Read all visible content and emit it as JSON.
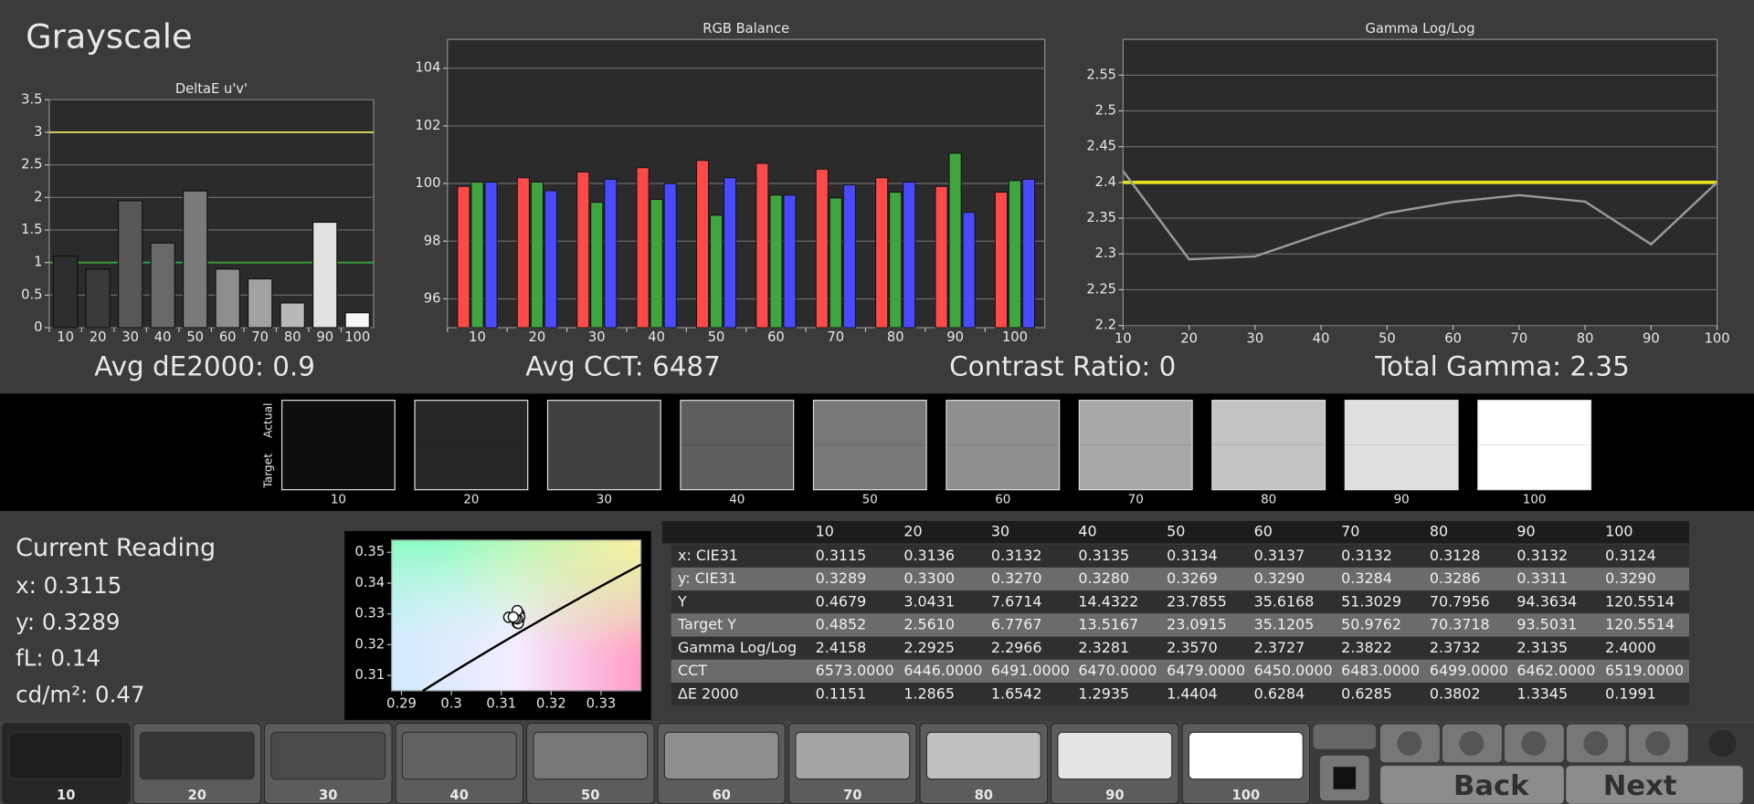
{
  "title": "Grayscale",
  "chart_data": [
    {
      "type": "bar",
      "title": "DeltaE u'v'",
      "categories": [
        "10",
        "20",
        "30",
        "40",
        "50",
        "60",
        "70",
        "80",
        "90",
        "100"
      ],
      "values": [
        1.1,
        0.9,
        1.95,
        1.3,
        2.1,
        0.9,
        0.75,
        0.38,
        1.62,
        0.23
      ],
      "colors": [
        "#2e2e2e",
        "#3a3a3a",
        "#575757",
        "#686868",
        "#7a7a7a",
        "#8e8e8e",
        "#a2a2a2",
        "#b8b8b8",
        "#e2e2e2",
        "#f6f6f6"
      ],
      "ylim": [
        0,
        3.5
      ],
      "yticks": [
        0,
        0.5,
        1,
        1.5,
        2,
        2.5,
        3,
        3.5
      ],
      "grid": true,
      "reference_lines": [
        {
          "value": 3,
          "color": "#d8d860"
        },
        {
          "value": 1,
          "color": "#3aa03a"
        }
      ]
    },
    {
      "type": "bar",
      "title": "RGB Balance",
      "categories": [
        "10",
        "20",
        "30",
        "40",
        "50",
        "60",
        "70",
        "80",
        "90",
        "100"
      ],
      "series": [
        {
          "color": "#ff4a4a",
          "values": [
            99.9,
            100.2,
            100.4,
            100.55,
            100.8,
            100.7,
            100.5,
            100.2,
            99.9,
            99.7
          ]
        },
        {
          "color": "#3fa63f",
          "values": [
            100.05,
            100.05,
            99.35,
            99.45,
            98.9,
            99.6,
            99.5,
            99.7,
            101.05,
            100.1
          ]
        },
        {
          "color": "#4a4aff",
          "values": [
            100.05,
            99.75,
            100.15,
            100.0,
            100.2,
            99.6,
            99.95,
            100.05,
            99.0,
            100.15
          ]
        }
      ],
      "ylim": [
        95,
        105
      ],
      "yticks": [
        96,
        98,
        100,
        102,
        104
      ],
      "grid": true
    },
    {
      "type": "line",
      "title": "Gamma Log/Log",
      "x": [
        10,
        20,
        30,
        40,
        50,
        60,
        70,
        80,
        90,
        100
      ],
      "series": [
        {
          "color": "#9a9a9a",
          "values": [
            2.4158,
            2.2925,
            2.2966,
            2.3281,
            2.357,
            2.3727,
            2.3822,
            2.3732,
            2.3135,
            2.4
          ]
        }
      ],
      "xlim": [
        10,
        100
      ],
      "xticks": [
        10,
        20,
        30,
        40,
        50,
        60,
        70,
        80,
        90,
        100
      ],
      "ylim": [
        2.2,
        2.6
      ],
      "yticks": [
        2.2,
        2.25,
        2.3,
        2.35,
        2.4,
        2.45,
        2.5,
        2.55
      ],
      "grid": true,
      "reference_lines": [
        {
          "value": 2.4,
          "color": "#e8e020"
        }
      ]
    },
    {
      "type": "scatter",
      "x": [
        0.3115,
        0.3136,
        0.3132,
        0.3135,
        0.3134,
        0.3137,
        0.3132,
        0.3128,
        0.3132,
        0.3124
      ],
      "y": [
        0.3289,
        0.33,
        0.327,
        0.328,
        0.3269,
        0.329,
        0.3284,
        0.3286,
        0.3311,
        0.329
      ],
      "xlim": [
        0.288,
        0.338
      ],
      "xticks": [
        0.29,
        0.3,
        0.31,
        0.32,
        0.33
      ],
      "ylim": [
        0.305,
        0.354
      ],
      "yticks": [
        0.31,
        0.32,
        0.33,
        0.34,
        0.35
      ],
      "color": "#ffffff"
    }
  ],
  "summary": [
    "Avg dE2000: 0.9",
    "Avg CCT: 6487",
    "Contrast Ratio: 0",
    "Total Gamma: 2.35"
  ],
  "swatches": {
    "side_labels": [
      "Actual",
      "Target"
    ],
    "items": [
      {
        "label": "10",
        "color": "#0e0e0e"
      },
      {
        "label": "20",
        "color": "#262626"
      },
      {
        "label": "30",
        "color": "#414141"
      },
      {
        "label": "40",
        "color": "#5e5e5e"
      },
      {
        "label": "50",
        "color": "#777777"
      },
      {
        "label": "60",
        "color": "#8f8f8f"
      },
      {
        "label": "70",
        "color": "#a8a8a8"
      },
      {
        "label": "80",
        "color": "#c3c3c3"
      },
      {
        "label": "90",
        "color": "#e0e0e0"
      },
      {
        "label": "100",
        "color": "#ffffff"
      }
    ]
  },
  "current_reading": {
    "title": "Current Reading",
    "lines": [
      "x: 0.3115",
      "y: 0.3289",
      "fL: 0.14",
      "cd/m²: 0.47"
    ]
  },
  "table": {
    "header": [
      "10",
      "20",
      "30",
      "40",
      "50",
      "60",
      "70",
      "80",
      "90",
      "100"
    ],
    "rows": [
      [
        "x: CIE31",
        "0.3115",
        "0.3136",
        "0.3132",
        "0.3135",
        "0.3134",
        "0.3137",
        "0.3132",
        "0.3128",
        "0.3132",
        "0.3124"
      ],
      [
        "y: CIE31",
        "0.3289",
        "0.3300",
        "0.3270",
        "0.3280",
        "0.3269",
        "0.3290",
        "0.3284",
        "0.3286",
        "0.3311",
        "0.3290"
      ],
      [
        "Y",
        "0.4679",
        "3.0431",
        "7.6714",
        "14.4322",
        "23.7855",
        "35.6168",
        "51.3029",
        "70.7956",
        "94.3634",
        "120.5514"
      ],
      [
        "Target Y",
        "0.4852",
        "2.5610",
        "6.7767",
        "13.5167",
        "23.0915",
        "35.1205",
        "50.9762",
        "70.3718",
        "93.5031",
        "120.5514"
      ],
      [
        "Gamma Log/Log",
        "2.4158",
        "2.2925",
        "2.2966",
        "2.3281",
        "2.3570",
        "2.3727",
        "2.3822",
        "2.3732",
        "2.3135",
        "2.4000"
      ],
      [
        "CCT",
        "6573.0000",
        "6446.0000",
        "6491.0000",
        "6470.0000",
        "6479.0000",
        "6450.0000",
        "6483.0000",
        "6499.0000",
        "6462.0000",
        "6519.0000"
      ],
      [
        "ΔE 2000",
        "0.1151",
        "1.2865",
        "1.6542",
        "1.2935",
        "1.4404",
        "0.6284",
        "0.6285",
        "0.3802",
        "1.3345",
        "0.1991"
      ]
    ]
  },
  "bottom_bar": {
    "tiles": [
      {
        "label": "10",
        "color": "#1e1e1e"
      },
      {
        "label": "20",
        "color": "#363636"
      },
      {
        "label": "30",
        "color": "#4a4a4a"
      },
      {
        "label": "40",
        "color": "#626262"
      },
      {
        "label": "50",
        "color": "#777777"
      },
      {
        "label": "60",
        "color": "#8e8e8e"
      },
      {
        "label": "70",
        "color": "#a5a5a5"
      },
      {
        "label": "80",
        "color": "#c0c0c0"
      },
      {
        "label": "90",
        "color": "#e4e4e4"
      },
      {
        "label": "100",
        "color": "#ffffff"
      }
    ],
    "buttons": [
      "Back",
      "Next"
    ]
  }
}
